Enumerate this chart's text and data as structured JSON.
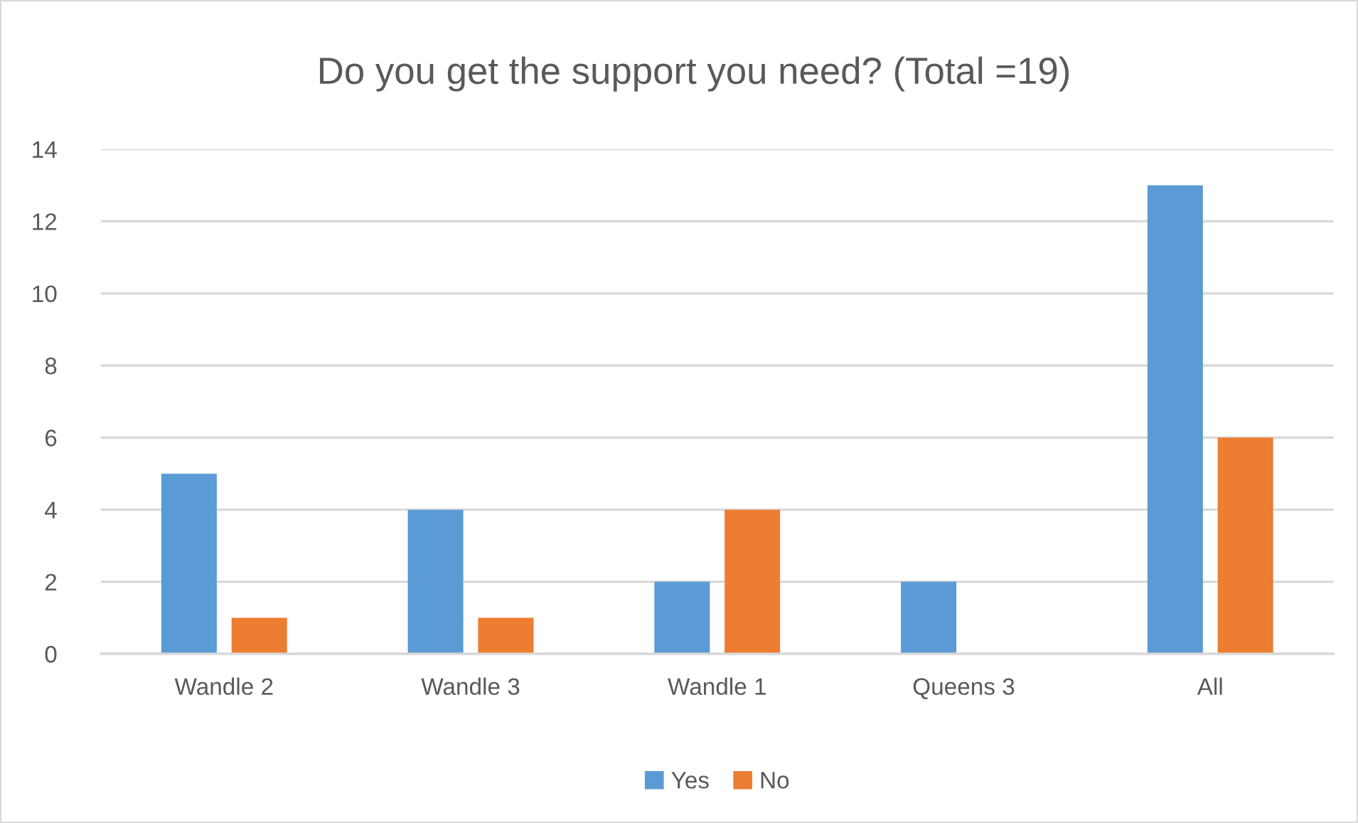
{
  "chart_data": {
    "type": "bar",
    "title": "Do you get the support you need? (Total =19)",
    "categories": [
      "Wandle 2",
      "Wandle 3",
      "Wandle 1",
      "Queens 3",
      "All"
    ],
    "series": [
      {
        "name": "Yes",
        "color": "#5b9bd5",
        "values": [
          5,
          4,
          2,
          2,
          13
        ]
      },
      {
        "name": "No",
        "color": "#ed7d31",
        "values": [
          1,
          1,
          4,
          0,
          6
        ]
      }
    ],
    "ylim": [
      0,
      14
    ],
    "yticks": [
      0,
      2,
      4,
      6,
      8,
      10,
      12,
      14
    ],
    "grid": "y",
    "legend": "bottom"
  }
}
